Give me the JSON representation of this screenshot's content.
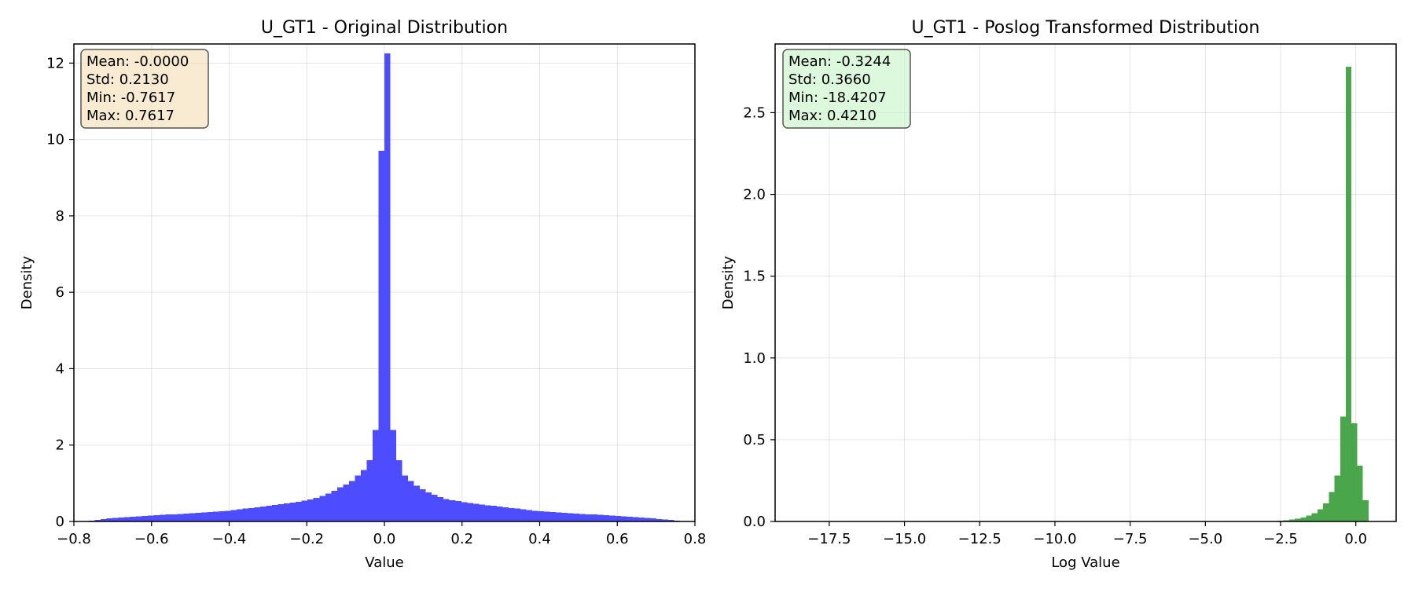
{
  "chart_data": [
    {
      "type": "bar",
      "subtype": "histogram",
      "title": "U_GT1 - Original Distribution",
      "xlabel": "Value",
      "ylabel": "Density",
      "xlim": [
        -0.8,
        0.8
      ],
      "ylim": [
        0,
        12.5
      ],
      "xticks": [
        "−0.8",
        "−0.6",
        "−0.4",
        "−0.2",
        "0.0",
        "0.2",
        "0.4",
        "0.6",
        "0.8"
      ],
      "yticks": [
        "0",
        "2",
        "4",
        "6",
        "8",
        "10",
        "12"
      ],
      "grid": true,
      "bar_color": "#4d4dff",
      "stats_box": {
        "lines": [
          "Mean: -0.0000",
          "Std: 0.2130",
          "Min: -0.7617",
          "Max: 0.7617"
        ],
        "background": "#f5deb3",
        "placement": "top-left"
      },
      "bins": {
        "x_min": -0.7617,
        "x_max": 0.7617,
        "count": 100,
        "values": [
          0.02,
          0.04,
          0.06,
          0.08,
          0.09,
          0.1,
          0.11,
          0.12,
          0.13,
          0.14,
          0.15,
          0.16,
          0.17,
          0.18,
          0.19,
          0.2,
          0.21,
          0.22,
          0.23,
          0.24,
          0.25,
          0.26,
          0.27,
          0.28,
          0.3,
          0.32,
          0.34,
          0.35,
          0.37,
          0.39,
          0.41,
          0.43,
          0.45,
          0.47,
          0.49,
          0.51,
          0.54,
          0.58,
          0.62,
          0.67,
          0.73,
          0.8,
          0.89,
          0.97,
          1.06,
          1.2,
          1.35,
          1.6,
          2.4,
          9.7,
          12.25,
          2.4,
          1.6,
          1.2,
          1.06,
          0.94,
          0.84,
          0.76,
          0.7,
          0.64,
          0.59,
          0.56,
          0.53,
          0.5,
          0.48,
          0.46,
          0.44,
          0.42,
          0.41,
          0.39,
          0.37,
          0.35,
          0.34,
          0.32,
          0.3,
          0.28,
          0.27,
          0.26,
          0.25,
          0.24,
          0.23,
          0.22,
          0.21,
          0.2,
          0.19,
          0.18,
          0.17,
          0.16,
          0.15,
          0.14,
          0.13,
          0.12,
          0.11,
          0.1,
          0.09,
          0.08,
          0.06,
          0.05,
          0.04,
          0.02
        ]
      }
    },
    {
      "type": "bar",
      "subtype": "histogram",
      "title": "U_GT1 - Poslog Transformed Distribution",
      "xlabel": "Log Value",
      "ylabel": "Density",
      "xlim": [
        -19.3,
        1.34
      ],
      "ylim": [
        0,
        2.92
      ],
      "xticks": [
        "−17.5",
        "−15.0",
        "−12.5",
        "−10.0",
        "−7.5",
        "−5.0",
        "−2.5",
        "0.0"
      ],
      "yticks": [
        "0.0",
        "0.5",
        "1.0",
        "1.5",
        "2.0",
        "2.5"
      ],
      "grid": true,
      "bar_color": "#4aa64a",
      "stats_box": {
        "lines": [
          "Mean: -0.3244",
          "Std: 0.3660",
          "Min: -18.4207",
          "Max: 0.4210"
        ],
        "background": "#c6f5c6",
        "placement": "top-left"
      },
      "bins": {
        "x_min": -18.4207,
        "x_max": 0.421,
        "count": 100,
        "values": [
          0.0005,
          0,
          0,
          0,
          0,
          0,
          0,
          0,
          0,
          0,
          0,
          0,
          0,
          0,
          0,
          0,
          0,
          0,
          0,
          0,
          0,
          0,
          0,
          0,
          0,
          0,
          0,
          0,
          0,
          0,
          0,
          0,
          0,
          0,
          0,
          0,
          0,
          0,
          0,
          0,
          0,
          0,
          0,
          0,
          0,
          0,
          0,
          0,
          0,
          0,
          0,
          0,
          0,
          0,
          0,
          0,
          0,
          0,
          0,
          0,
          0,
          0,
          0,
          0,
          0,
          0,
          0,
          0,
          0,
          0,
          0,
          0,
          0,
          0,
          0,
          0,
          0,
          0,
          0,
          0,
          0,
          0.0005,
          0.001,
          0.002,
          0.004,
          0.007,
          0.011,
          0.017,
          0.025,
          0.035,
          0.05,
          0.075,
          0.11,
          0.18,
          0.28,
          0.64,
          2.78,
          0.6,
          0.34,
          0.13
        ]
      }
    }
  ]
}
